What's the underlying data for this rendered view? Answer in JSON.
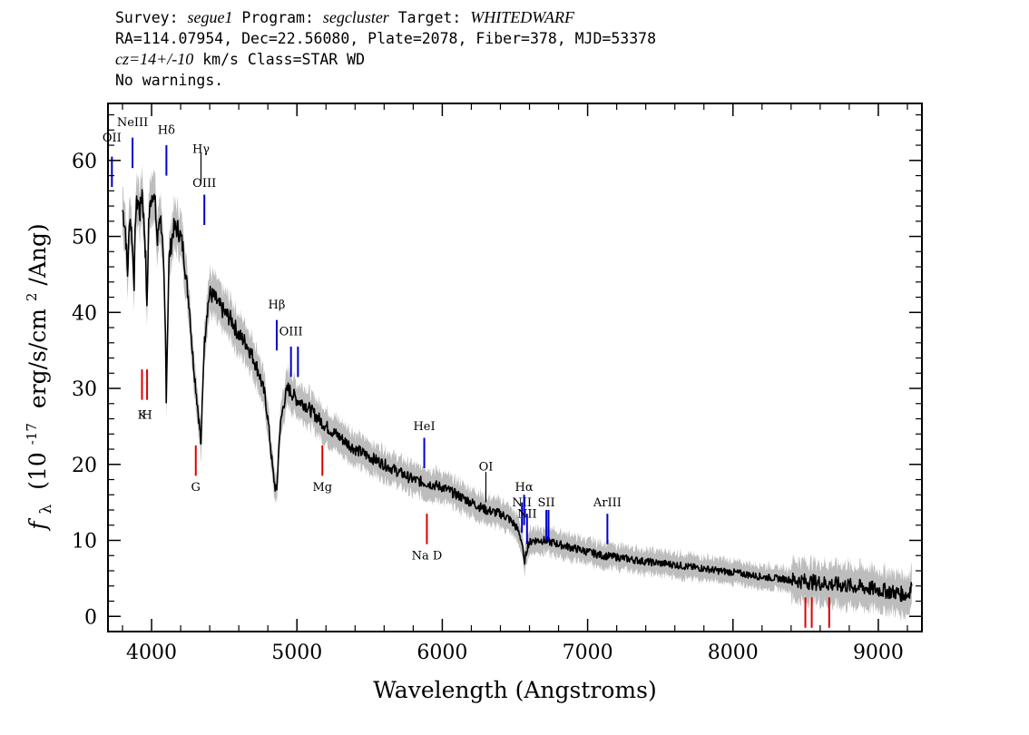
{
  "header": {
    "survey_label": "Survey:",
    "survey": "segue1",
    "program_label": "Program:",
    "program": "segcluster",
    "target_label": "Target:",
    "target": "WHITEDWARF",
    "line2": "RA=114.07954, Dec=22.56080, Plate=2078, Fiber=378, MJD=53378",
    "cz": "cz=14+/-10",
    "cz_rest": "km/s Class=STAR WD",
    "warnings": "No warnings."
  },
  "colors": {
    "spectrum": "#000000",
    "error_band": "#bdbdbd",
    "emission_marker": "#0000cc",
    "absorption_marker": "#dd0000",
    "hgamma_marker": "#000000"
  },
  "chart_data": {
    "type": "line",
    "xlabel": "Wavelength (Angstroms)",
    "ylabel_symbol": "f",
    "ylabel_subscript": "λ",
    "ylabel_units_prefix": "(10",
    "ylabel_exponent": "-17",
    "ylabel_units_middle": "erg/s/cm",
    "ylabel_exponent2": "2",
    "ylabel_units_suffix": "/Ang)",
    "xlim": [
      3700,
      9300
    ],
    "ylim": [
      -2,
      67.5
    ],
    "x_ticks": [
      4000,
      5000,
      6000,
      7000,
      8000,
      9000
    ],
    "x_tick_labels": [
      "4000",
      "5000",
      "6000",
      "7000",
      "8000",
      "9000"
    ],
    "y_ticks": [
      0,
      10,
      20,
      30,
      40,
      50,
      60
    ],
    "y_tick_labels": [
      "0",
      "10",
      "20",
      "30",
      "40",
      "50",
      "60"
    ],
    "grid": false,
    "series": [
      {
        "x": [
          3800,
          3820,
          3835,
          3850,
          3865,
          3880,
          3890,
          3905,
          3920,
          3935,
          3950,
          3960,
          3968,
          3980,
          3995,
          4010,
          4025,
          4040,
          4055,
          4070,
          4085,
          4095,
          4101,
          4108,
          4120,
          4135,
          4150,
          4165,
          4180,
          4200,
          4220,
          4240,
          4260,
          4280,
          4300,
          4320,
          4335,
          4340,
          4348,
          4360,
          4380,
          4400,
          4430,
          4460,
          4500,
          4550,
          4600,
          4650,
          4700,
          4740,
          4780,
          4800,
          4820,
          4835,
          4850,
          4861,
          4870,
          4880,
          4900,
          4920,
          4940,
          4960,
          4980,
          5000,
          5050,
          5100,
          5200,
          5300,
          5400,
          5500,
          5600,
          5700,
          5800,
          5900,
          6000,
          6100,
          6200,
          6300,
          6400,
          6450,
          6500,
          6530,
          6550,
          6563,
          6575,
          6590,
          6620,
          6650,
          6700,
          6800,
          6900,
          7000,
          7100,
          7200,
          7300,
          7400,
          7500,
          7600,
          7700,
          7800,
          7900,
          8000,
          8100,
          8200,
          8300,
          8400,
          8500,
          8600,
          8700,
          8800,
          8900,
          9000,
          9100,
          9150,
          9200,
          9230
        ],
        "y": [
          53.5,
          51,
          45,
          53,
          50,
          44,
          53,
          55,
          53,
          56,
          51,
          47,
          40,
          52,
          55,
          56,
          54,
          49,
          53,
          51,
          44,
          37,
          29,
          36,
          47,
          49,
          51,
          51,
          51,
          50,
          48,
          44,
          41,
          35,
          31,
          27,
          24,
          22,
          28,
          35,
          40,
          42.5,
          42,
          41,
          40,
          39,
          37,
          36,
          34,
          32,
          29,
          26,
          22,
          19,
          17,
          16.5,
          20,
          24,
          27,
          29,
          30,
          29.5,
          29,
          28.5,
          28,
          27,
          25,
          23.5,
          22,
          21,
          20,
          19,
          18,
          17.5,
          17,
          16,
          15,
          14,
          13.5,
          13,
          12,
          11,
          9.5,
          7,
          8,
          9.5,
          10,
          10,
          10,
          9.5,
          9,
          8.5,
          8,
          7.8,
          7.5,
          7.2,
          7,
          6.8,
          6.5,
          6.3,
          6,
          5.8,
          5.5,
          5.2,
          5,
          4.8,
          4.6,
          4.4,
          4.2,
          4,
          3.8,
          3.5,
          3.2,
          3,
          2.8,
          4
        ]
      }
    ],
    "line_markers": [
      {
        "label": "OII",
        "wavelength": 3727,
        "type": "emission",
        "label_y": 62.5,
        "y1": 56.5,
        "y2": 60.5
      },
      {
        "label": "NeIII",
        "wavelength": 3869,
        "type": "emission",
        "label_y": 64.5,
        "y1": 59,
        "y2": 63
      },
      {
        "label": "Hδ",
        "wavelength": 4102,
        "type": "emission",
        "label_y": 63.5,
        "y1": 58,
        "y2": 62
      },
      {
        "label": "Hγ",
        "wavelength": 4340,
        "type": "neutral",
        "label_y": 61,
        "y1": 57,
        "y2": 61
      },
      {
        "label": "OIII",
        "wavelength": 4363,
        "type": "emission",
        "label_y": 56.5,
        "y1": 51.5,
        "y2": 55.5
      },
      {
        "label": "Hβ",
        "wavelength": 4861,
        "type": "emission",
        "label_y": 40.5,
        "y1": 35,
        "y2": 39
      },
      {
        "label": "OIII",
        "wavelength": 4959,
        "type": "emission",
        "label_y": 37,
        "y1": 31.5,
        "y2": 35.5
      },
      {
        "label": "",
        "wavelength": 5007,
        "type": "emission",
        "label_y": 0,
        "y1": 31.5,
        "y2": 35.5
      },
      {
        "label": "HeI",
        "wavelength": 5876,
        "type": "emission",
        "label_y": 24.5,
        "y1": 19.5,
        "y2": 23.5
      },
      {
        "label": "OI",
        "wavelength": 6300,
        "type": "neutral",
        "label_y": 19.2,
        "y1": 15,
        "y2": 19
      },
      {
        "label": "NII",
        "wavelength": 6548,
        "type": "emission",
        "label_y": 14.5,
        "y1": 11,
        "y2": 15
      },
      {
        "label": "Hα",
        "wavelength": 6563,
        "type": "emission",
        "label_y": 16.5,
        "y1": 12,
        "y2": 16
      },
      {
        "label": "NII",
        "wavelength": 6583,
        "type": "emission",
        "label_y": 13,
        "y1": 9.5,
        "y2": 13.5
      },
      {
        "label": "SII",
        "wavelength": 6716,
        "type": "emission",
        "label_y": 14.5,
        "y1": 10,
        "y2": 14
      },
      {
        "label": "",
        "wavelength": 6731,
        "type": "emission",
        "label_y": 0,
        "y1": 10,
        "y2": 14
      },
      {
        "label": "ArIII",
        "wavelength": 7136,
        "type": "emission",
        "label_y": 14.5,
        "y1": 9.5,
        "y2": 13.5
      },
      {
        "label": "K",
        "wavelength": 3934,
        "type": "absorption",
        "label_y": 26,
        "y1": 28.5,
        "y2": 32.5
      },
      {
        "label": "H",
        "wavelength": 3969,
        "type": "absorption",
        "label_y": 26,
        "y1": 28.5,
        "y2": 32.5
      },
      {
        "label": "G",
        "wavelength": 4304,
        "type": "absorption",
        "label_y": 16.5,
        "y1": 18.5,
        "y2": 22.5
      },
      {
        "label": "Mg",
        "wavelength": 5175,
        "type": "absorption",
        "label_y": 16.5,
        "y1": 18.5,
        "y2": 22.5
      },
      {
        "label": "Na D",
        "wavelength": 5894,
        "type": "absorption",
        "label_y": 7.5,
        "y1": 9.5,
        "y2": 13.5
      },
      {
        "label": "",
        "wavelength": 8498,
        "type": "absorption",
        "label_y": 0,
        "y1": -1.5,
        "y2": 2.5
      },
      {
        "label": "",
        "wavelength": 8542,
        "type": "absorption",
        "label_y": 0,
        "y1": -1.5,
        "y2": 2.5
      },
      {
        "label": "",
        "wavelength": 8662,
        "type": "absorption",
        "label_y": 0,
        "y1": -1.5,
        "y2": 2.5
      }
    ]
  }
}
